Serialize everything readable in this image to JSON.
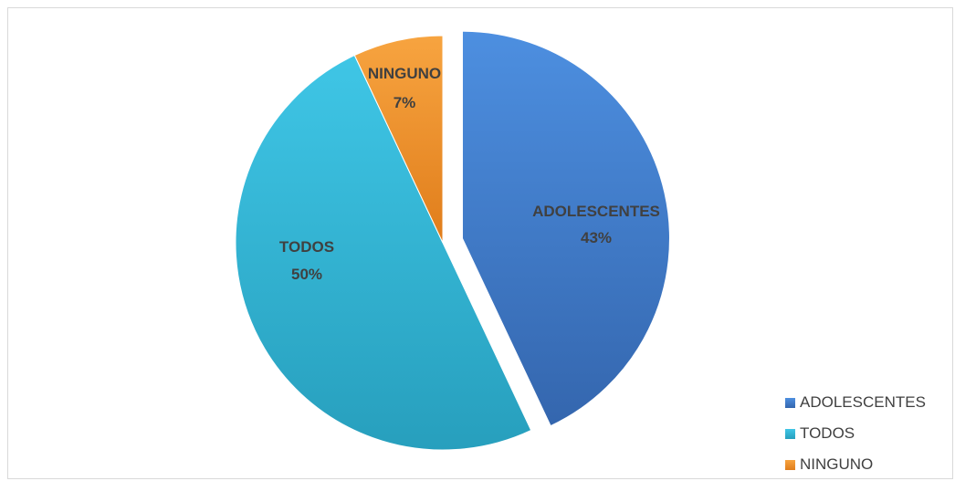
{
  "chart_data": {
    "type": "pie",
    "title": "",
    "categories": [
      "ADOLESCENTES",
      "TODOS",
      "NINGUNO"
    ],
    "values": [
      43,
      50,
      7
    ],
    "percent_labels": [
      "43%",
      "50%",
      "7%"
    ],
    "colors": [
      "#4a86d4",
      "#35b5d6",
      "#f0922e"
    ],
    "exploded": [
      true,
      false,
      false
    ],
    "legend_position": "bottom-right",
    "legend": [
      {
        "label": "ADOLESCENTES",
        "color": "#4a86d4"
      },
      {
        "label": "TODOS",
        "color": "#35b5d6"
      },
      {
        "label": "NINGUNO",
        "color": "#f0922e"
      }
    ]
  }
}
